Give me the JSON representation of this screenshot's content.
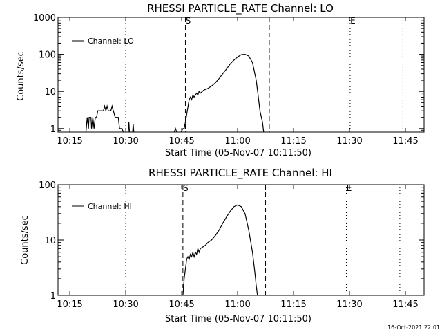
{
  "chart_data": [
    {
      "type": "line",
      "title": "RHESSI PARTICLE_RATE Channel: LO",
      "xlabel": "Start Time (05-Nov-07 10:11:50)",
      "ylabel": "Counts/sec",
      "yscale": "log",
      "ylim": [
        0.8,
        1000
      ],
      "xlim": [
        "10:11:50",
        "11:50:00"
      ],
      "x_ticks": [
        "10:15",
        "10:30",
        "10:45",
        "11:00",
        "11:15",
        "11:30",
        "11:45"
      ],
      "y_ticks": [
        "1",
        "10",
        "100",
        "1000"
      ],
      "legend": "top-left",
      "series": [
        {
          "name": "Channel: LO",
          "segments": [
            [
              [
                "10:19:20",
                0.8
              ],
              [
                "10:19:40",
                2
              ],
              [
                "10:20:00",
                1
              ],
              [
                "10:20:10",
                2
              ],
              [
                "10:20:40",
                2
              ],
              [
                "10:20:50",
                1
              ],
              [
                "10:21:10",
                2
              ],
              [
                "10:21:30",
                1
              ],
              [
                "10:21:50",
                2
              ],
              [
                "10:22:10",
                2
              ],
              [
                "10:22:30",
                3
              ],
              [
                "10:24:00",
                3
              ],
              [
                "10:24:20",
                4
              ],
              [
                "10:24:40",
                3
              ],
              [
                "10:25:00",
                4
              ],
              [
                "10:25:20",
                3
              ],
              [
                "10:26:00",
                3
              ],
              [
                "10:26:20",
                4
              ],
              [
                "10:26:40",
                3
              ],
              [
                "10:27:10",
                2
              ],
              [
                "10:28:00",
                2
              ],
              [
                "10:28:20",
                1
              ],
              [
                "10:29:00",
                1
              ],
              [
                "10:29:20",
                0.8
              ]
            ],
            [
              [
                "10:30:40",
                0.8
              ],
              [
                "10:30:50",
                1.5
              ],
              [
                "10:31:00",
                0.8
              ]
            ],
            [
              [
                "10:31:50",
                0.8
              ],
              [
                "10:32:00",
                1.3
              ],
              [
                "10:32:10",
                0.8
              ]
            ],
            [
              [
                "10:43:00",
                0.8
              ],
              [
                "10:43:20",
                1
              ],
              [
                "10:43:40",
                0.8
              ]
            ],
            [
              [
                "10:44:50",
                0.8
              ],
              [
                "10:45:20",
                1
              ],
              [
                "10:45:40",
                1
              ],
              [
                "10:46:00",
                1.5
              ],
              [
                "10:46:30",
                3
              ],
              [
                "10:47:00",
                6
              ],
              [
                "10:47:20",
                7
              ],
              [
                "10:47:40",
                6
              ],
              [
                "10:48:00",
                8
              ],
              [
                "10:48:20",
                7
              ],
              [
                "10:48:40",
                8
              ],
              [
                "10:49:00",
                9
              ],
              [
                "10:49:20",
                8
              ],
              [
                "10:49:40",
                10
              ],
              [
                "10:50:00",
                9
              ],
              [
                "10:51:00",
                11
              ],
              [
                "10:52:00",
                12
              ],
              [
                "10:53:00",
                14
              ],
              [
                "10:54:00",
                17
              ],
              [
                "10:55:00",
                22
              ],
              [
                "10:56:00",
                30
              ],
              [
                "10:57:00",
                40
              ],
              [
                "10:58:00",
                55
              ],
              [
                "10:59:00",
                70
              ],
              [
                "11:00:00",
                85
              ],
              [
                "11:01:00",
                98
              ],
              [
                "11:02:00",
                100
              ],
              [
                "11:03:00",
                90
              ],
              [
                "11:04:00",
                60
              ],
              [
                "11:05:00",
                20
              ],
              [
                "11:05:30",
                8
              ],
              [
                "11:06:00",
                3
              ],
              [
                "11:06:40",
                1.5
              ],
              [
                "11:07:00",
                0.8
              ]
            ]
          ]
        }
      ],
      "markers": [
        {
          "time": "10:30:00",
          "style": "dotted",
          "label": ""
        },
        {
          "time": "10:46:00",
          "style": "dashed",
          "label": "S"
        },
        {
          "time": "11:08:30",
          "style": "dashed",
          "label": ""
        },
        {
          "time": "11:30:10",
          "style": "dotted",
          "label": "E"
        },
        {
          "time": "11:44:20",
          "style": "dotted",
          "label": ""
        }
      ]
    },
    {
      "type": "line",
      "title": "RHESSI PARTICLE_RATE Channel: HI",
      "xlabel": "Start Time (05-Nov-07 10:11:50)",
      "ylabel": "Counts/sec",
      "yscale": "log",
      "ylim": [
        1,
        100
      ],
      "xlim": [
        "10:11:50",
        "11:50:00"
      ],
      "x_ticks": [
        "10:15",
        "10:30",
        "10:45",
        "11:00",
        "11:15",
        "11:30",
        "11:45"
      ],
      "y_ticks": [
        "1",
        "10",
        "100"
      ],
      "legend": "top-left",
      "series": [
        {
          "name": "Channel: HI",
          "segments": [
            [
              [
                "10:45:20",
                1
              ],
              [
                "10:45:40",
                2
              ],
              [
                "10:46:00",
                3
              ],
              [
                "10:46:20",
                4.5
              ],
              [
                "10:46:40",
                5
              ],
              [
                "10:47:00",
                4.5
              ],
              [
                "10:47:20",
                5.5
              ],
              [
                "10:47:40",
                5
              ],
              [
                "10:48:00",
                6
              ],
              [
                "10:48:20",
                5
              ],
              [
                "10:48:40",
                6
              ],
              [
                "10:49:00",
                5.5
              ],
              [
                "10:49:20",
                7
              ],
              [
                "10:49:40",
                6
              ],
              [
                "10:50:00",
                7
              ],
              [
                "10:50:40",
                7.5
              ],
              [
                "10:51:20",
                8
              ],
              [
                "10:52:00",
                9
              ],
              [
                "10:53:00",
                10
              ],
              [
                "10:54:00",
                12
              ],
              [
                "10:55:00",
                15
              ],
              [
                "10:56:00",
                20
              ],
              [
                "10:57:00",
                26
              ],
              [
                "10:58:00",
                33
              ],
              [
                "10:59:00",
                40
              ],
              [
                "11:00:00",
                43
              ],
              [
                "11:01:00",
                40
              ],
              [
                "11:02:00",
                30
              ],
              [
                "11:03:00",
                15
              ],
              [
                "11:04:00",
                6
              ],
              [
                "11:04:40",
                2.5
              ],
              [
                "11:05:00",
                1.5
              ],
              [
                "11:05:20",
                1
              ]
            ]
          ]
        }
      ],
      "markers": [
        {
          "time": "10:30:00",
          "style": "dotted",
          "label": ""
        },
        {
          "time": "10:45:20",
          "style": "dashed",
          "label": "S"
        },
        {
          "time": "11:07:30",
          "style": "dashed",
          "label": ""
        },
        {
          "time": "11:29:10",
          "style": "dotted",
          "label": "E"
        },
        {
          "time": "11:43:30",
          "style": "dotted",
          "label": ""
        }
      ]
    }
  ],
  "footer": {
    "timestamp": "16-Oct-2021 22:01"
  }
}
